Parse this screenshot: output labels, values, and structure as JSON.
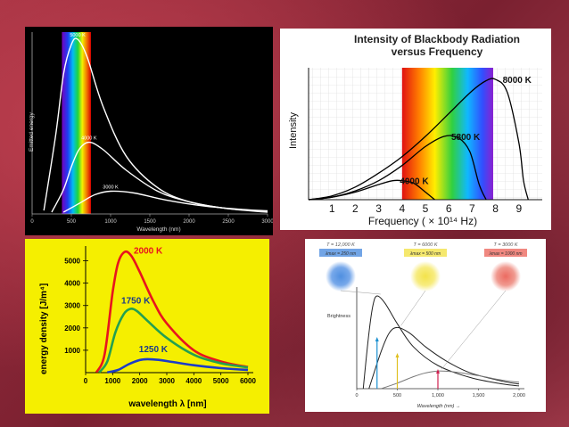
{
  "chart_data": [
    {
      "type": "line",
      "title": "",
      "xlabel": "Wavelength (nm)",
      "ylabel": "Emitted energy",
      "xlim": [
        0,
        3000
      ],
      "x_ticks": [
        "0",
        "500",
        "1000",
        "1500",
        "2000",
        "2500",
        "3000"
      ],
      "background": "#000000",
      "curve_color": "#ffffff",
      "series": [
        {
          "name": "5000 K",
          "peak_nm": 580,
          "x": [
            150,
            300,
            400,
            500,
            580,
            700,
            900,
            1200,
            1600,
            2000,
            2500,
            3000
          ],
          "y": [
            0.02,
            0.45,
            0.8,
            0.97,
            1.0,
            0.9,
            0.62,
            0.33,
            0.15,
            0.07,
            0.03,
            0.01
          ]
        },
        {
          "name": "4000 K",
          "peak_nm": 725,
          "x": [
            250,
            400,
            500,
            600,
            725,
            900,
            1200,
            1600,
            2000,
            2500,
            3000
          ],
          "y": [
            0.01,
            0.14,
            0.27,
            0.37,
            0.41,
            0.37,
            0.25,
            0.13,
            0.07,
            0.03,
            0.015
          ]
        },
        {
          "name": "3000 K",
          "peak_nm": 1000,
          "x": [
            400,
            600,
            800,
            1000,
            1300,
            1700,
            2200,
            2700,
            3000
          ],
          "y": [
            0.01,
            0.06,
            0.11,
            0.13,
            0.12,
            0.08,
            0.045,
            0.025,
            0.018
          ]
        }
      ]
    },
    {
      "type": "line",
      "title": "Intensity of Blackbody Radiation versus Frequency",
      "title_lines": [
        "Intensity of Blackbody Radiation",
        "versus Frequency"
      ],
      "xlabel": "Frequency ( × 10¹⁴ Hz)",
      "ylabel": "Intensity",
      "xlim": [
        0,
        10
      ],
      "x_ticks": [
        "1",
        "2",
        "3",
        "4",
        "5",
        "6",
        "7",
        "8",
        "9"
      ],
      "curve_color": "#000000",
      "series": [
        {
          "name": "8000 K",
          "x": [
            0,
            1,
            2,
            3,
            4,
            5,
            6,
            7,
            7.6,
            8,
            8.5,
            9,
            9.2,
            9.4
          ],
          "y": [
            0,
            0.03,
            0.1,
            0.21,
            0.34,
            0.5,
            0.68,
            0.86,
            0.94,
            0.95,
            0.85,
            0.45,
            0.15,
            0
          ]
        },
        {
          "name": "5800 K",
          "x": [
            0,
            1,
            2,
            3,
            4,
            5,
            5.8,
            6.4,
            6.9,
            7.3,
            7.6
          ],
          "y": [
            0,
            0.02,
            0.07,
            0.15,
            0.27,
            0.42,
            0.5,
            0.49,
            0.38,
            0.12,
            0
          ]
        },
        {
          "name": "4000 K",
          "x": [
            0,
            1,
            2,
            3,
            3.6,
            4,
            4.5,
            5,
            5.4
          ],
          "y": [
            0,
            0.02,
            0.06,
            0.12,
            0.15,
            0.15,
            0.13,
            0.06,
            0
          ]
        }
      ]
    },
    {
      "type": "line",
      "title": "",
      "xlabel": "wavelength λ [nm]",
      "ylabel": "energy density [J/m⁴]",
      "xlim": [
        0,
        6000
      ],
      "ylim": [
        0,
        5500
      ],
      "x_ticks": [
        "0",
        "1000",
        "2000",
        "3000",
        "4000",
        "5000",
        "6000"
      ],
      "y_ticks": [
        "1000",
        "2000",
        "3000",
        "4000",
        "5000"
      ],
      "background": "#f5ef00",
      "series": [
        {
          "name": "2000 K",
          "color": "#e8141e",
          "x": [
            400,
            700,
            1000,
            1200,
            1450,
            1700,
            2000,
            2500,
            3000,
            4000,
            5000,
            6000
          ],
          "y": [
            10,
            800,
            3600,
            4900,
            5400,
            5200,
            4500,
            3200,
            2200,
            1000,
            500,
            250
          ]
        },
        {
          "name": "1750 K",
          "color": "#23a050",
          "x": [
            500,
            800,
            1100,
            1400,
            1650,
            1900,
            2300,
            3000,
            4000,
            5000,
            6000
          ],
          "y": [
            10,
            500,
            1800,
            2600,
            2850,
            2750,
            2300,
            1550,
            800,
            420,
            230
          ]
        },
        {
          "name": "1250 K",
          "color": "#1c3cc8",
          "x": [
            800,
            1200,
            1600,
            2000,
            2300,
            2700,
            3200,
            4000,
            5000,
            6000
          ],
          "y": [
            10,
            120,
            380,
            560,
            600,
            570,
            480,
            330,
            200,
            120
          ]
        }
      ]
    },
    {
      "type": "line",
      "title": "",
      "xlabel": "Wavelength (nm) →",
      "ylabel": "Brightness",
      "xlim": [
        0,
        2000
      ],
      "x_ticks": [
        "0",
        "500",
        "1,000",
        "1,500",
        "2,000"
      ],
      "legend": [
        {
          "label": "T = 12,000 K",
          "peak_label": "λmax = 250 nm",
          "color": "#4f8fe0"
        },
        {
          "label": "T = 6000 K",
          "peak_label": "λmax = 500 nm",
          "color": "#f3e24a"
        },
        {
          "label": "T = 3000 K",
          "peak_label": "λmax = 1000 nm",
          "color": "#ec6a60"
        }
      ],
      "series": [
        {
          "name": "T = 12,000 K",
          "x": [
            80,
            150,
            200,
            250,
            350,
            500,
            700,
            1000,
            1400,
            1800,
            2000
          ],
          "y": [
            0,
            0.6,
            0.9,
            1.0,
            0.92,
            0.7,
            0.45,
            0.25,
            0.12,
            0.05,
            0.03
          ]
        },
        {
          "name": "T = 6000 K",
          "x": [
            150,
            300,
            400,
            500,
            650,
            850,
            1100,
            1400,
            1800,
            2000
          ],
          "y": [
            0,
            0.4,
            0.6,
            0.66,
            0.6,
            0.45,
            0.3,
            0.17,
            0.08,
            0.05
          ]
        },
        {
          "name": "T = 3000 K",
          "x": [
            300,
            500,
            700,
            850,
            1000,
            1200,
            1500,
            1800,
            2000
          ],
          "y": [
            0,
            0.06,
            0.13,
            0.17,
            0.19,
            0.18,
            0.14,
            0.09,
            0.07
          ]
        }
      ],
      "markers": [
        {
          "x": 250,
          "color": "#1a8fd0"
        },
        {
          "x": 500,
          "color": "#e0c020"
        },
        {
          "x": 1000,
          "color": "#d02050"
        }
      ]
    }
  ]
}
